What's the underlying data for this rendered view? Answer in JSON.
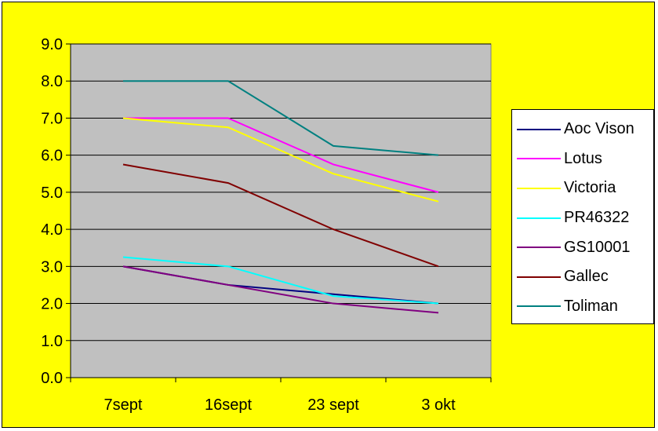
{
  "chart_data": {
    "type": "line",
    "categories": [
      "7sept",
      "16sept",
      "23 sept",
      "3 okt"
    ],
    "ylim": [
      0,
      9
    ],
    "y_ticks": [
      "0.0",
      "1.0",
      "2.0",
      "3.0",
      "4.0",
      "5.0",
      "6.0",
      "7.0",
      "8.0",
      "9.0"
    ],
    "grid": "horizontal",
    "legend_position": "right",
    "plot_background": "#c0c0c0",
    "outer_background": "#ffff00",
    "series": [
      {
        "name": "Aoc Vison",
        "color": "#000080",
        "values": [
          3.0,
          2.5,
          2.25,
          2.0
        ]
      },
      {
        "name": "Lotus",
        "color": "#ff00ff",
        "values": [
          7.0,
          7.0,
          5.75,
          5.0
        ]
      },
      {
        "name": "Victoria",
        "color": "#ffff00",
        "values": [
          7.0,
          6.75,
          5.5,
          4.75
        ]
      },
      {
        "name": "PR46322",
        "color": "#00ffff",
        "values": [
          3.25,
          3.0,
          2.2,
          2.0
        ]
      },
      {
        "name": "GS10001",
        "color": "#800080",
        "values": [
          3.0,
          2.5,
          2.0,
          1.75
        ]
      },
      {
        "name": "Gallec",
        "color": "#800000",
        "values": [
          5.75,
          5.25,
          4.0,
          3.0
        ]
      },
      {
        "name": "Toliman",
        "color": "#008080",
        "values": [
          8.0,
          8.0,
          6.25,
          6.0
        ]
      }
    ]
  }
}
